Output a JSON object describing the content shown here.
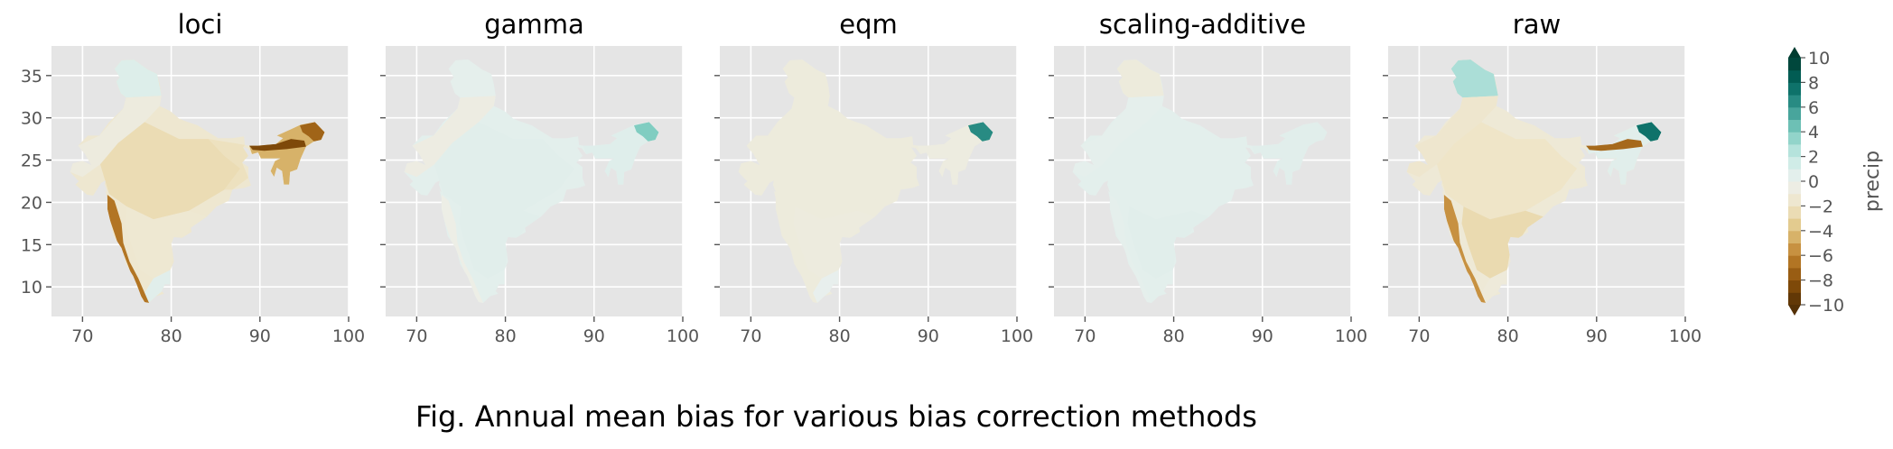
{
  "caption": "Fig. Annual mean bias for various bias correction methods",
  "chart_data": {
    "type": "heatmap",
    "panels": [
      {
        "title": "loci",
        "style": "loci"
      },
      {
        "title": "gamma",
        "style": "gamma"
      },
      {
        "title": "eqm",
        "style": "eqm"
      },
      {
        "title": "scaling-additive",
        "style": "scaling"
      },
      {
        "title": "raw",
        "style": "raw"
      }
    ],
    "xlim": [
      66.5,
      100
    ],
    "ylim": [
      6.5,
      38.5
    ],
    "xticks": [
      70,
      80,
      90,
      100
    ],
    "yticks": [
      10,
      15,
      20,
      25,
      30,
      35
    ],
    "colorbar": {
      "label": "precip",
      "ticks": [
        10,
        8,
        6,
        4,
        2,
        0,
        -2,
        -4,
        -6,
        -8,
        -10
      ],
      "levels": [
        -10,
        -9,
        -8,
        -7,
        -6,
        -5,
        -4,
        -3,
        -2,
        -1,
        0,
        1,
        2,
        3,
        4,
        5,
        6,
        7,
        8,
        9,
        10
      ],
      "extend": "both",
      "colormap": "BrBG"
    },
    "axes_background": "#e5e5e5",
    "grid": true,
    "colors": {
      "land_neutral": "#f0efe4",
      "dry": "#8c510a",
      "wet": "#01665e"
    }
  }
}
